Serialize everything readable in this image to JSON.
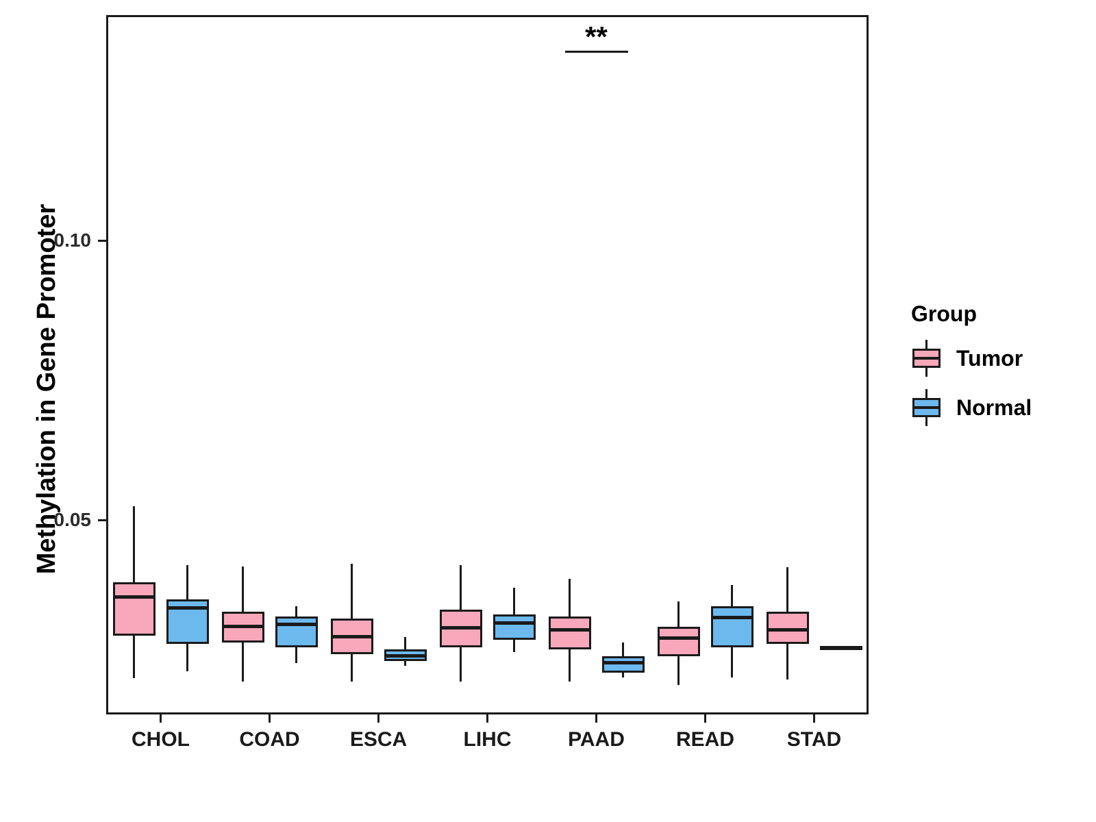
{
  "legend": {
    "title": "Group"
  },
  "chart_data": {
    "type": "boxplot",
    "title": "",
    "xlabel": "",
    "ylabel": "Methylation in Gene Promoter",
    "ylim": [
      0.0153,
      0.1404
    ],
    "y_ticks": [
      0.05,
      0.1
    ],
    "y_tick_labels": [
      "0.05",
      "0.10"
    ],
    "grid": "off",
    "legend_position": "right",
    "categories": [
      "CHOL",
      "COAD",
      "ESCA",
      "LIHC",
      "PAAD",
      "READ",
      "STAD"
    ],
    "series": [
      {
        "name": "Tumor",
        "color": "#F9A8BC",
        "boxes": [
          {
            "whislo": 0.0218,
            "q1": 0.0294,
            "med": 0.0363,
            "q3": 0.039,
            "whishi": 0.0525
          },
          {
            "whislo": 0.0212,
            "q1": 0.0282,
            "med": 0.031,
            "q3": 0.0337,
            "whishi": 0.0418
          },
          {
            "whislo": 0.0212,
            "q1": 0.0261,
            "med": 0.0292,
            "q3": 0.0325,
            "whishi": 0.0423
          },
          {
            "whislo": 0.0212,
            "q1": 0.0273,
            "med": 0.0308,
            "q3": 0.0341,
            "whishi": 0.042
          },
          {
            "whislo": 0.0212,
            "q1": 0.027,
            "med": 0.0304,
            "q3": 0.0328,
            "whishi": 0.0396
          },
          {
            "whislo": 0.0206,
            "q1": 0.0257,
            "med": 0.029,
            "q3": 0.031,
            "whishi": 0.0355
          },
          {
            "whislo": 0.0216,
            "q1": 0.0279,
            "med": 0.0304,
            "q3": 0.0337,
            "whishi": 0.0417
          }
        ]
      },
      {
        "name": "Normal",
        "color": "#6CB9EE",
        "boxes": [
          {
            "whislo": 0.023,
            "q1": 0.0279,
            "med": 0.0343,
            "q3": 0.0359,
            "whishi": 0.042
          },
          {
            "whislo": 0.0245,
            "q1": 0.0273,
            "med": 0.0314,
            "q3": 0.0328,
            "whishi": 0.0347
          },
          {
            "whislo": 0.024,
            "q1": 0.0249,
            "med": 0.0258,
            "q3": 0.027,
            "whishi": 0.0292
          },
          {
            "whislo": 0.0264,
            "q1": 0.0286,
            "med": 0.0316,
            "q3": 0.0332,
            "whishi": 0.038
          },
          {
            "whislo": 0.0219,
            "q1": 0.0228,
            "med": 0.0245,
            "q3": 0.0257,
            "whishi": 0.0282
          },
          {
            "whislo": 0.0219,
            "q1": 0.0273,
            "med": 0.0326,
            "q3": 0.0347,
            "whishi": 0.0384
          },
          {
            "whislo": 0.027,
            "q1": 0.0271,
            "med": 0.0273,
            "q3": 0.0275,
            "whishi": 0.0276
          }
        ]
      }
    ],
    "significance": [
      {
        "category": "PAAD",
        "label": "**"
      }
    ]
  }
}
